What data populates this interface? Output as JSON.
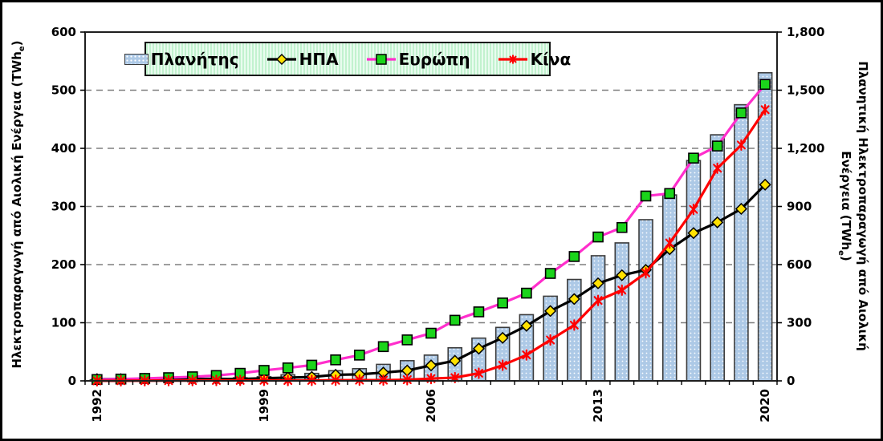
{
  "figure": {
    "background": "#ffffff",
    "border_color": "#000000",
    "grid_color": "#7f7f7f",
    "plot_border_color": "#1f1f1f"
  },
  "axes": {
    "left": {
      "title": "Ηλεκτροπαραγωγή από Αιολική Ενέργεια (TWh",
      "title_sub": "e",
      "title_close": ")"
    },
    "right": {
      "title_line1": "Πλανητική Ηλεκτροπαραγωγή από Αιολική",
      "title_line2": "Ενέργεια (TWh",
      "title_sub": "e",
      "title_close": ")"
    }
  },
  "chart_data": {
    "type": "bar+line combo",
    "x": [
      1992,
      1993,
      1994,
      1995,
      1996,
      1997,
      1998,
      1999,
      2000,
      2001,
      2002,
      2003,
      2004,
      2005,
      2006,
      2007,
      2008,
      2009,
      2010,
      2011,
      2012,
      2013,
      2014,
      2015,
      2016,
      2017,
      2018,
      2019,
      2020
    ],
    "x_tick_labels": [
      "1992",
      "1999",
      "2006",
      "2013",
      "2020"
    ],
    "left_axis": {
      "label": "Ηλεκτροπαραγωγή από Αιολική Ενέργεια (TWhe)",
      "range": [
        0,
        600
      ],
      "ticks": [
        0,
        100,
        200,
        300,
        400,
        500,
        600
      ],
      "tick_labels": [
        "0",
        "100",
        "200",
        "300",
        "400",
        "500",
        "600"
      ]
    },
    "right_axis": {
      "label": "Πλανητική Ηλεκτροπαραγωγή από Αιολική Ενέργεια (TWhe)",
      "range": [
        0,
        1800
      ],
      "ticks": [
        0,
        300,
        600,
        900,
        1200,
        1500,
        1800
      ],
      "tick_labels": [
        "0",
        "300",
        "600",
        "900",
        "1,200",
        "1,500",
        "1,800"
      ]
    },
    "grid": "horizontal dashed",
    "legend_position": "top center inside",
    "series": [
      {
        "name": "Πλανήτης",
        "type": "bar",
        "axis": "right",
        "color": "#adc9e6",
        "border_color": "#3c3c3c",
        "values": [
          4.7,
          5.8,
          7.1,
          8.3,
          9.4,
          12.0,
          15.9,
          21.2,
          31.4,
          38.4,
          52.3,
          62.9,
          85.1,
          104.1,
          132.9,
          170.7,
          220.6,
          275.9,
          341.6,
          436.8,
          523.3,
          645.7,
          712.0,
          831.8,
          959.5,
          1136.8,
          1269.9,
          1425.0,
          1590.0
        ]
      },
      {
        "name": "ΗΠΑ",
        "type": "line",
        "axis": "left",
        "color": "#000000",
        "marker": "diamond",
        "marker_color": "#ffe100",
        "marker_border": "#000000",
        "values": [
          3.0,
          3.1,
          3.5,
          3.2,
          3.2,
          3.4,
          3.1,
          4.5,
          5.6,
          6.7,
          10.4,
          11.2,
          14.2,
          17.8,
          26.6,
          34.5,
          55.4,
          74.0,
          94.7,
          120.2,
          140.8,
          167.8,
          181.7,
          190.9,
          226.5,
          254.3,
          272.7,
          295.9,
          337.5
        ]
      },
      {
        "name": "Ευρώπη",
        "type": "line",
        "axis": "left",
        "color": "#ff2ecc",
        "marker": "square",
        "marker_color": "#1bd41b",
        "marker_border": "#000000",
        "values": [
          2.3,
          3.1,
          4.2,
          5.5,
          7.0,
          9.2,
          13.0,
          18.0,
          22.3,
          27.0,
          36.1,
          44.3,
          58.9,
          70.5,
          82.0,
          104.3,
          118.7,
          134.0,
          150.9,
          184.8,
          213.9,
          247.5,
          263.8,
          318.0,
          322.3,
          383.2,
          404.0,
          461.0,
          510.0
        ]
      },
      {
        "name": "Κίνα",
        "type": "line",
        "axis": "left",
        "color": "#ff0000",
        "marker": "asterisk",
        "marker_color": "#ff0000",
        "marker_border": "#ff0000",
        "values": [
          0.1,
          0.2,
          0.3,
          0.4,
          0.5,
          0.7,
          0.8,
          0.9,
          0.6,
          0.8,
          1.0,
          1.2,
          1.3,
          2.0,
          3.9,
          5.6,
          13.1,
          26.9,
          44.6,
          70.3,
          96.0,
          138.3,
          156.1,
          185.8,
          237.1,
          295.0,
          365.8,
          405.7,
          466.5
        ]
      }
    ]
  }
}
